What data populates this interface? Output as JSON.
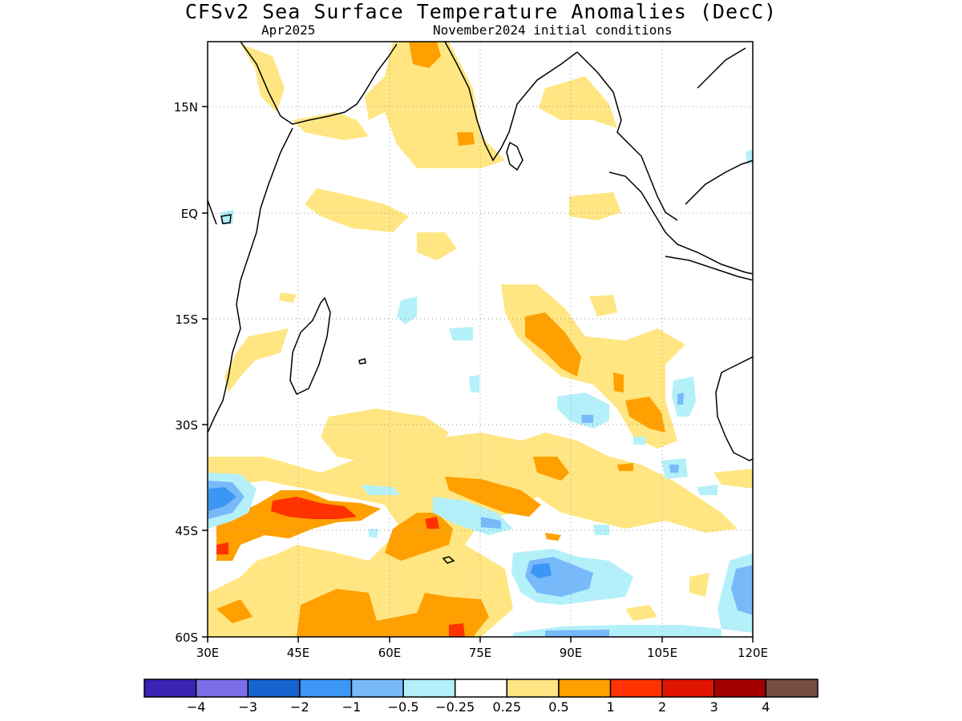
{
  "header": {
    "title": "CFSv2 Sea Surface Temperature Anomalies (DecC)",
    "valid_month": "Apr2025",
    "initial_conditions": "November2024 initial conditions"
  },
  "map": {
    "lon_ticks": [
      "30E",
      "45E",
      "60E",
      "75E",
      "90E",
      "105E",
      "120E"
    ],
    "lat_ticks": [
      "15N",
      "EQ",
      "15S",
      "30S",
      "45S",
      "60S"
    ],
    "colors": {
      "ocean_bg": "#ffffff",
      "coast": "#000000",
      "grid": "#999999"
    }
  },
  "colorbar": {
    "colors": [
      "#3a22b4",
      "#7d6ee8",
      "#1664d0",
      "#3c96f5",
      "#78b9fa",
      "#b4f0fa",
      "#ffffff",
      "#ffe682",
      "#ffa000",
      "#ff3200",
      "#e11400",
      "#a50000",
      "#784e42"
    ],
    "labels": [
      "−4",
      "−3",
      "−2",
      "−1",
      "−0.5",
      "−0.25",
      "0.25",
      "0.5",
      "1",
      "2",
      "3",
      "4"
    ]
  }
}
